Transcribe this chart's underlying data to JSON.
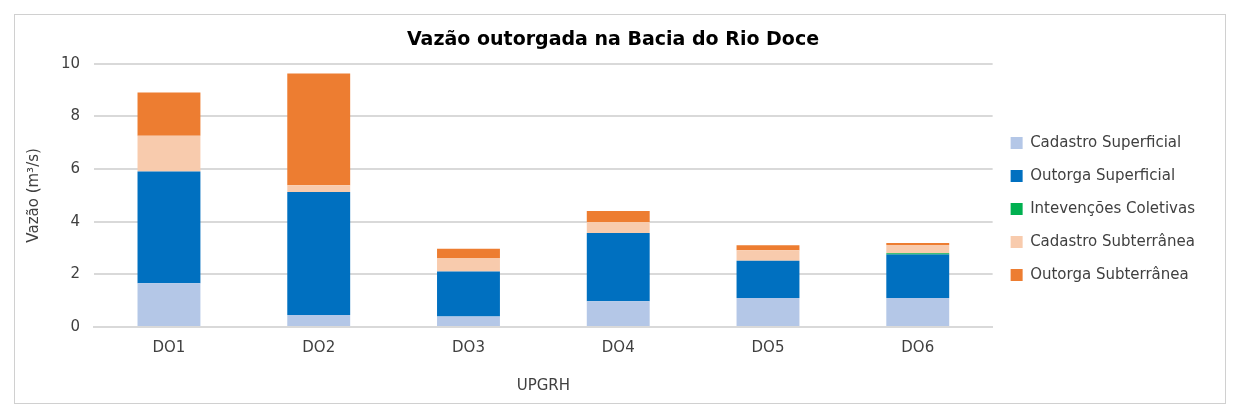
{
  "chart_data": {
    "type": "bar",
    "title": "Vazão outorgada na Bacia do Rio Doce",
    "xlabel": "UPGRH",
    "ylabel": "Vazão (m³/s)",
    "categories": [
      "DO1",
      "DO2",
      "DO3",
      "DO4",
      "DO5",
      "DO6"
    ],
    "stacked": true,
    "ylim": [
      0,
      10
    ],
    "yticks": [
      0,
      2,
      4,
      6,
      8,
      10
    ],
    "grid": "y",
    "legend": "right",
    "series": [
      {
        "name": "Cadastro Superficial",
        "color": "#b4c7e7",
        "values": [
          1.66,
          0.46,
          0.4,
          0.98,
          1.1,
          1.1
        ]
      },
      {
        "name": "Outorga Superficial",
        "color": "#0070c0",
        "values": [
          4.25,
          4.67,
          1.71,
          2.59,
          1.42,
          1.65
        ]
      },
      {
        "name": "Intevenções Coletivas",
        "color": "#00b050",
        "values": [
          0,
          0,
          0,
          0,
          0,
          0.05
        ]
      },
      {
        "name": "Cadastro Subterrânea",
        "color": "#f8cbad",
        "values": [
          1.36,
          0.26,
          0.51,
          0.42,
          0.4,
          0.32
        ]
      },
      {
        "name": "Outorga Subterrânea",
        "color": "#ed7d31",
        "values": [
          1.64,
          4.24,
          0.35,
          0.42,
          0.19,
          0.07
        ]
      }
    ]
  }
}
